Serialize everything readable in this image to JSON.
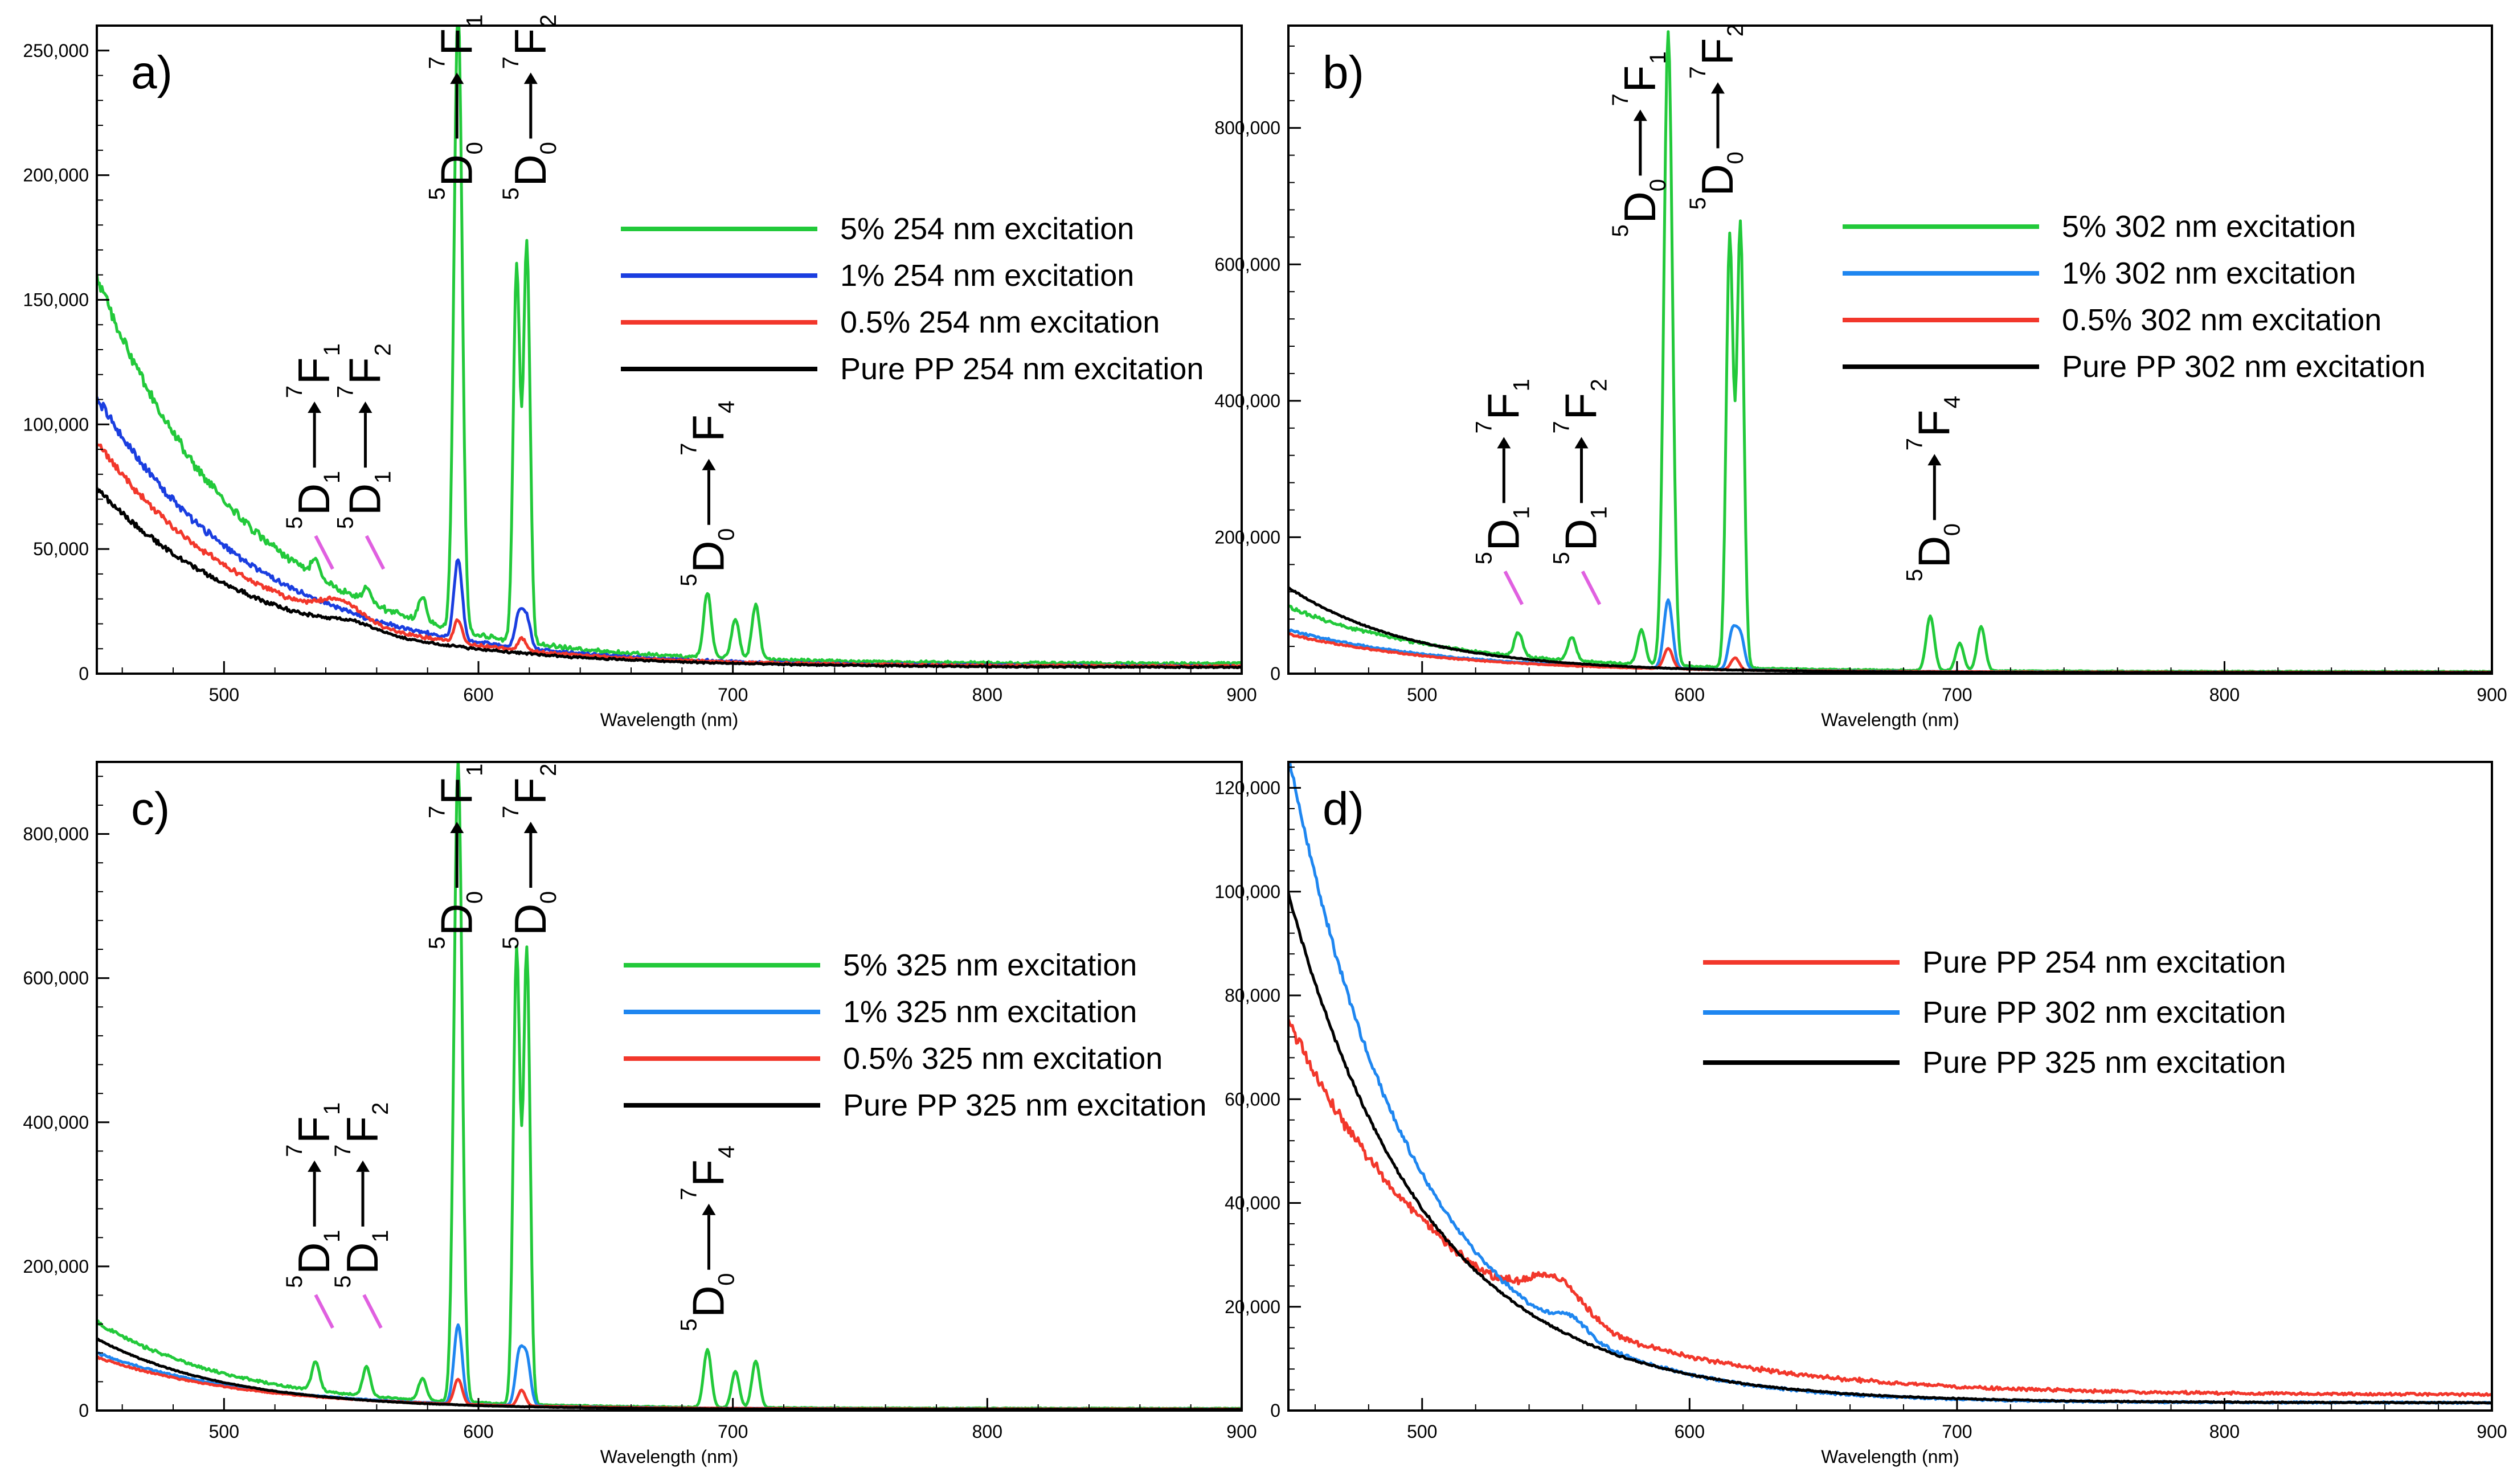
{
  "colors": {
    "green": "#22c93a",
    "blue_a": "#1a3ee0",
    "blue": "#1e86f0",
    "red": "#f2372b",
    "black": "#000000",
    "pointer": "#e060e0",
    "axis": "#000000"
  },
  "common": {
    "xlabel": "Wavelength (nm)",
    "xlim": [
      450,
      900
    ],
    "xticks": [
      "500",
      "600",
      "700",
      "800",
      "900"
    ]
  },
  "chart_data": [
    {
      "id": "a",
      "type": "line",
      "panel_label": "a)",
      "xlabel": "Wavelength (nm)",
      "xlim": [
        450,
        900
      ],
      "ylim": [
        0,
        260000
      ],
      "yticks": [
        0,
        50000,
        100000,
        150000,
        200000,
        250000
      ],
      "ytick_labels": [
        "0",
        "50,000",
        "100,000",
        "150,000",
        "200,000",
        "250,000"
      ],
      "series": [
        {
          "name": "5% 254 nm excitation",
          "color_key": "green",
          "base": 155000,
          "k": 58,
          "floor": 4000,
          "noise": 5000,
          "peaks": [
            [
              536,
              8000,
              1.5
            ],
            [
              556,
              6000,
              1.5
            ],
            [
              578,
              10000,
              1.5
            ],
            [
              592,
              250000,
              1.6
            ],
            [
              615,
              150000,
              1.3
            ],
            [
              619,
              160000,
              1.3
            ],
            [
              690,
              26000,
              1.5
            ],
            [
              701,
              16000,
              1.5
            ],
            [
              709,
              22000,
              1.5
            ]
          ]
        },
        {
          "name": "1% 254 nm excitation",
          "color_key": "blue_a",
          "base": 108000,
          "k": 62,
          "floor": 3000,
          "noise": 3500,
          "peaks": [
            [
              592,
              32000,
              1.6
            ],
            [
              616,
              14000,
              1.5
            ],
            [
              619,
              12000,
              1.5
            ]
          ]
        },
        {
          "name": "0.5% 254 nm excitation",
          "color_key": "red",
          "base": 90000,
          "k": 63,
          "floor": 3000,
          "noise": 3000,
          "peaks": [
            [
              546,
              7000,
              8
            ],
            [
              592,
              9000,
              1.6
            ],
            [
              617,
              5000,
              1.5
            ]
          ]
        },
        {
          "name": "Pure PP 254 nm excitation",
          "color_key": "black",
          "base": 72000,
          "k": 66,
          "floor": 2500,
          "noise": 2500,
          "peaks": [
            [
              550,
              3000,
              10
            ]
          ]
        }
      ],
      "annotations": [
        {
          "upper": "5",
          "lower": "1",
          "lower2": "1",
          "term": "D",
          "term2": "F",
          "sup2": "7",
          "wl": 536,
          "val": 58000,
          "pointer": true
        },
        {
          "upper": "5",
          "lower": "1",
          "lower2": "2",
          "term": "D",
          "term2": "F",
          "sup2": "7",
          "wl": 556,
          "val": 58000,
          "pointer": true
        },
        {
          "upper": "5",
          "lower": "0",
          "lower2": "1",
          "term": "D",
          "term2": "F",
          "sup2": "7",
          "wl": 592,
          "val": 190000,
          "pointer": false
        },
        {
          "upper": "5",
          "lower": "0",
          "lower2": "2",
          "term": "D",
          "term2": "F",
          "sup2": "7",
          "wl": 621,
          "val": 190000,
          "pointer": false
        },
        {
          "upper": "5",
          "lower": "0",
          "lower2": "4",
          "term": "D",
          "term2": "F",
          "sup2": "7",
          "wl": 691,
          "val": 35000,
          "pointer": false
        }
      ],
      "legend": "right"
    },
    {
      "id": "b",
      "type": "line",
      "panel_label": "b)",
      "xlabel": "Wavelength (nm)",
      "xlim": [
        450,
        900
      ],
      "ylim": [
        0,
        950000
      ],
      "yticks": [
        0,
        200000,
        400000,
        600000,
        800000
      ],
      "ytick_labels": [
        "0",
        "200,000",
        "400,000",
        "600,000",
        "800,000"
      ],
      "series": [
        {
          "name": "5% 302 nm excitation",
          "color_key": "green",
          "base": 95000,
          "k": 60,
          "floor": 3000,
          "noise": 6000,
          "peaks": [
            [
              536,
              35000,
              1.5
            ],
            [
              556,
              35000,
              1.5
            ],
            [
              582,
              50000,
              1.5
            ],
            [
              592,
              930000,
              1.6
            ],
            [
              615,
              630000,
              1.3
            ],
            [
              619,
              650000,
              1.3
            ],
            [
              690,
              80000,
              1.5
            ],
            [
              701,
              40000,
              1.5
            ],
            [
              709,
              65000,
              1.5
            ]
          ]
        },
        {
          "name": "1% 302 nm excitation",
          "color_key": "blue",
          "base": 62000,
          "k": 60,
          "floor": 2000,
          "noise": 3000,
          "peaks": [
            [
              592,
              100000,
              1.6
            ],
            [
              616,
              55000,
              1.5
            ],
            [
              619,
              50000,
              1.5
            ]
          ]
        },
        {
          "name": "0.5% 302 nm excitation",
          "color_key": "red",
          "base": 56000,
          "k": 60,
          "floor": 2000,
          "noise": 2500,
          "peaks": [
            [
              592,
              30000,
              1.6
            ],
            [
              617,
              18000,
              1.5
            ]
          ]
        },
        {
          "name": "Pure PP 302 nm excitation",
          "color_key": "black",
          "base": 125000,
          "k": 48,
          "floor": 1500,
          "noise": 2000,
          "peaks": []
        }
      ],
      "annotations": [
        {
          "upper": "5",
          "lower": "1",
          "lower2": "1",
          "term": "D",
          "term2": "F",
          "sup2": "7",
          "wl": 531,
          "val": 160000,
          "pointer": true
        },
        {
          "upper": "5",
          "lower": "1",
          "lower2": "2",
          "term": "D",
          "term2": "F",
          "sup2": "7",
          "wl": 560,
          "val": 160000,
          "pointer": true
        },
        {
          "upper": "5",
          "lower": "0",
          "lower2": "1",
          "term": "D",
          "term2": "F",
          "sup2": "7",
          "wl": 582,
          "val": 640000,
          "pointer": false
        },
        {
          "upper": "5",
          "lower": "0",
          "lower2": "2",
          "term": "D",
          "term2": "F",
          "sup2": "7",
          "wl": 611,
          "val": 680000,
          "pointer": false
        },
        {
          "upper": "5",
          "lower": "0",
          "lower2": "4",
          "term": "D",
          "term2": "F",
          "sup2": "7",
          "wl": 692,
          "val": 135000,
          "pointer": false
        }
      ],
      "legend": "right"
    },
    {
      "id": "c",
      "type": "line",
      "panel_label": "c)",
      "xlabel": "Wavelength (nm)",
      "xlim": [
        450,
        900
      ],
      "ylim": [
        0,
        900000
      ],
      "yticks": [
        0,
        200000,
        400000,
        600000,
        800000
      ],
      "ytick_labels": [
        "0",
        "200,000",
        "400,000",
        "600,000",
        "800,000"
      ],
      "series": [
        {
          "name": "5% 325 nm excitation",
          "color_key": "green",
          "base": 120000,
          "k": 55,
          "floor": 3000,
          "noise": 5000,
          "peaks": [
            [
              536,
              40000,
              1.5
            ],
            [
              556,
              40000,
              1.5
            ],
            [
              578,
              30000,
              1.5
            ],
            [
              592,
              890000,
              1.6
            ],
            [
              615,
              630000,
              1.3
            ],
            [
              619,
              630000,
              1.3
            ],
            [
              690,
              80000,
              1.5
            ],
            [
              701,
              50000,
              1.5
            ],
            [
              709,
              65000,
              1.5
            ]
          ]
        },
        {
          "name": "1% 325 nm excitation",
          "color_key": "blue",
          "base": 78000,
          "k": 60,
          "floor": 2000,
          "noise": 2500,
          "peaks": [
            [
              592,
              110000,
              1.6
            ],
            [
              616,
              70000,
              1.5
            ],
            [
              619,
              65000,
              1.5
            ]
          ]
        },
        {
          "name": "0.5% 325 nm excitation",
          "color_key": "red",
          "base": 72000,
          "k": 60,
          "floor": 2000,
          "noise": 2500,
          "peaks": [
            [
              592,
              35000,
              1.6
            ],
            [
              617,
              22000,
              1.5
            ]
          ]
        },
        {
          "name": "Pure PP 325 nm excitation",
          "color_key": "black",
          "base": 98000,
          "k": 52,
          "floor": 1500,
          "noise": 1500,
          "peaks": []
        }
      ],
      "annotations": [
        {
          "upper": "5",
          "lower": "1",
          "lower2": "1",
          "term": "D",
          "term2": "F",
          "sup2": "7",
          "wl": 536,
          "val": 170000,
          "pointer": true
        },
        {
          "upper": "5",
          "lower": "1",
          "lower2": "2",
          "term": "D",
          "term2": "F",
          "sup2": "7",
          "wl": 555,
          "val": 170000,
          "pointer": true
        },
        {
          "upper": "5",
          "lower": "0",
          "lower2": "1",
          "term": "D",
          "term2": "F",
          "sup2": "7",
          "wl": 592,
          "val": 640000,
          "pointer": false
        },
        {
          "upper": "5",
          "lower": "0",
          "lower2": "2",
          "term": "D",
          "term2": "F",
          "sup2": "7",
          "wl": 621,
          "val": 640000,
          "pointer": false
        },
        {
          "upper": "5",
          "lower": "0",
          "lower2": "4",
          "term": "D",
          "term2": "F",
          "sup2": "7",
          "wl": 691,
          "val": 110000,
          "pointer": false
        }
      ],
      "legend": "right"
    },
    {
      "id": "d",
      "type": "line",
      "panel_label": "d)",
      "xlabel": "Wavelength (nm)",
      "xlim": [
        450,
        900
      ],
      "ylim": [
        0,
        125000
      ],
      "yticks": [
        0,
        20000,
        40000,
        60000,
        80000,
        100000,
        120000
      ],
      "ytick_labels": [
        "0",
        "20,000",
        "40,000",
        "60,000",
        "80,000",
        "100,000",
        "120,000"
      ],
      "series": [
        {
          "name": "Pure PP 254 nm excitation",
          "color_key": "red",
          "base": 72000,
          "k": 66,
          "floor": 3000,
          "noise": 2500,
          "peaks": [
            [
              550,
              7000,
              10
            ]
          ]
        },
        {
          "name": "Pure PP 302 nm excitation",
          "color_key": "blue",
          "base": 125000,
          "k": 48,
          "floor": 1500,
          "noise": 1500,
          "peaks": [
            [
              556,
              3000,
              6
            ]
          ]
        },
        {
          "name": "Pure PP 325 nm excitation",
          "color_key": "black",
          "base": 98000,
          "k": 52,
          "floor": 1500,
          "noise": 800,
          "peaks": []
        }
      ],
      "annotations": [],
      "legend": "right"
    }
  ]
}
